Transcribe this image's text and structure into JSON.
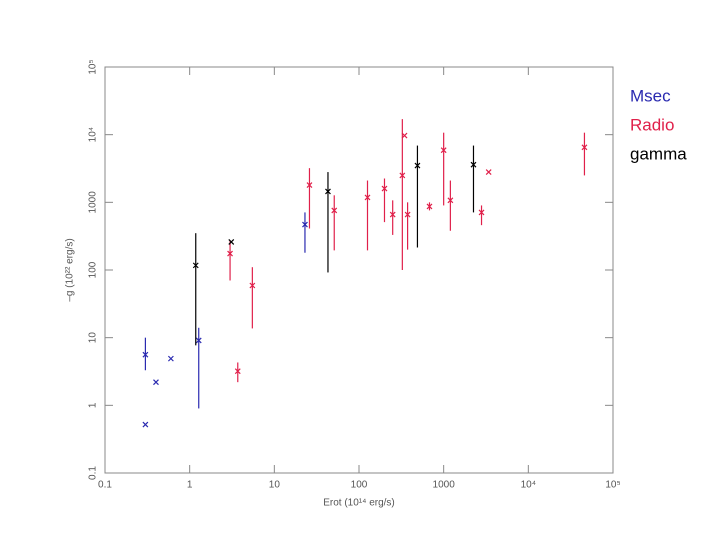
{
  "chart_data": {
    "type": "scatter",
    "x_label": "Erot (10¹⁴ erg/s)",
    "y_label": "–g (10²² erg/s)",
    "xscale": "log",
    "yscale": "log",
    "xlim": [
      0.1,
      100000
    ],
    "ylim": [
      0.1,
      100000
    ],
    "xticks": [
      0.1,
      1,
      10,
      100,
      1000,
      {
        "value": 10000,
        "label": "10⁴"
      },
      {
        "value": 100000,
        "label": "10⁵"
      }
    ],
    "yticks": [
      0.1,
      1,
      10,
      100,
      1000,
      {
        "value": 10000,
        "label": "10⁴"
      },
      {
        "value": 100000,
        "label": "10⁵"
      }
    ],
    "series": [
      {
        "name": "Msec",
        "color": "#2a2ab0",
        "x": [
          0.3,
          0.3,
          0.4,
          0.6,
          1.28,
          23
        ],
        "values": [
          5.6,
          0.52,
          2.2,
          4.9,
          9.1,
          470
        ],
        "y_low": [
          3.3,
          null,
          null,
          null,
          0.9,
          180
        ],
        "y_high": [
          10,
          null,
          null,
          null,
          14,
          710
        ]
      },
      {
        "name": "Radio",
        "color": "#e0204a",
        "x": [
          3.0,
          3.7,
          5.5,
          26,
          51,
          126,
          200,
          250,
          325,
          345,
          375,
          680,
          1000,
          1200,
          2800,
          3400,
          46000
        ],
        "values": [
          175,
          3.2,
          59,
          1800,
          760,
          1180,
          1600,
          660,
          2500,
          9700,
          660,
          870,
          5900,
          1070,
          710,
          2800,
          6500
        ],
        "y_low": [
          70,
          2.2,
          13.7,
          410,
          195,
          195,
          510,
          330,
          100,
          null,
          200,
          760,
          900,
          380,
          460,
          null,
          2500
        ],
        "y_high": [
          275,
          4.3,
          110,
          3200,
          1270,
          2100,
          2250,
          1070,
          17000,
          null,
          1000,
          1000,
          10700,
          2100,
          900,
          null,
          10700
        ]
      },
      {
        "name": "gamma",
        "color": "#000000",
        "x": [
          1.18,
          3.1,
          43,
          490,
          2250
        ],
        "values": [
          117,
          260,
          1450,
          3500,
          3600
        ],
        "y_low": [
          7.7,
          null,
          92,
          215,
          710
        ],
        "y_high": [
          350,
          null,
          2800,
          6900,
          6900
        ]
      }
    ]
  }
}
